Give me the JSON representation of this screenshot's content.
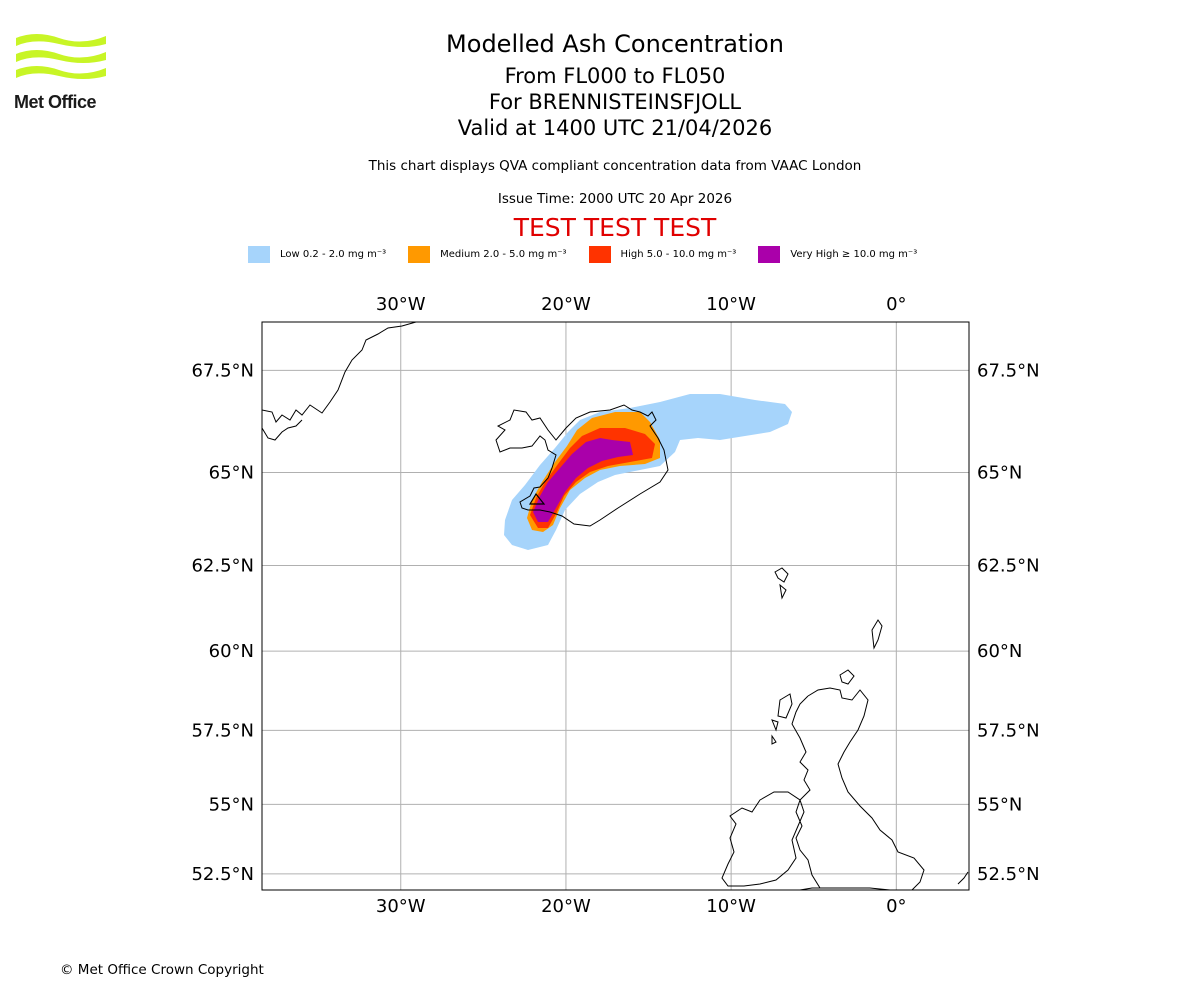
{
  "header": {
    "logo_text": "Met Office",
    "title": "Modelled Ash Concentration",
    "flight_levels": "From FL000 to FL050",
    "volcano": "For BRENNISTEINSFJOLL",
    "valid_time": "Valid at 1400 UTC 21/04/2026",
    "description": "This chart displays QVA compliant concentration data from VAAC London",
    "issue_time": "Issue Time: 2000 UTC 20 Apr 2026",
    "test_banner": "TEST TEST TEST"
  },
  "legend": [
    {
      "label": "Low 0.2 - 2.0 mg m⁻³",
      "color": "#a6d4fb"
    },
    {
      "label": "Medium 2.0 - 5.0 mg m⁻³",
      "color": "#ff9900"
    },
    {
      "label": "High 5.0 - 10.0 mg m⁻³",
      "color": "#ff3300"
    },
    {
      "label": "Very High  ≥  10.0 mg m⁻³",
      "color": "#aa00aa"
    }
  ],
  "map": {
    "lon_range": [
      -38.4,
      4.4
    ],
    "lat_range": [
      51.9,
      68.6
    ],
    "lon_ticks": [
      {
        "value": -30,
        "label": "30°W"
      },
      {
        "value": -20,
        "label": "20°W"
      },
      {
        "value": -10,
        "label": "10°W"
      },
      {
        "value": 0,
        "label": "0°"
      }
    ],
    "lat_ticks": [
      {
        "value": 67.5,
        "label": "67.5°N"
      },
      {
        "value": 65,
        "label": "65°N"
      },
      {
        "value": 62.5,
        "label": "62.5°N"
      },
      {
        "value": 60,
        "label": "60°N"
      },
      {
        "value": 57.5,
        "label": "57.5°N"
      },
      {
        "value": 55,
        "label": "55°N"
      },
      {
        "value": 52.5,
        "label": "52.5°N"
      }
    ],
    "grid_color": "#b0b0b0"
  },
  "footer": {
    "copyright": "© Met Office Crown Copyright"
  }
}
